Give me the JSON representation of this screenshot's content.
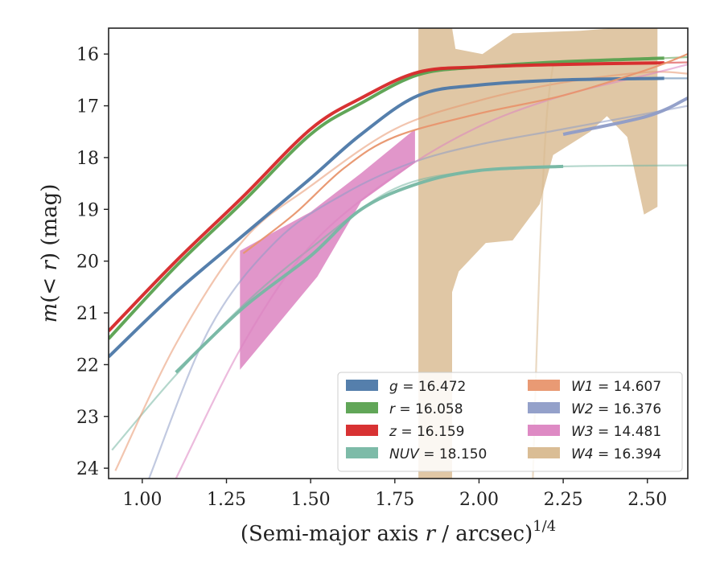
{
  "chart_data": {
    "type": "line",
    "xlabel": "(Semi-major axis r / arcsec)¹ᐟ⁴",
    "xlabel_parts": {
      "pre": "(Semi-major axis ",
      "var": "r",
      "post": " / arcsec)",
      "sup": "1/4"
    },
    "ylabel_parts": {
      "var": "m",
      "mid": "(< ",
      "var2": "r",
      "post": ") (mag)"
    },
    "xlim": [
      0.9,
      2.62
    ],
    "ylim": [
      24.2,
      15.5
    ],
    "y_inverted": true,
    "x_ticks": [
      1.0,
      1.25,
      1.5,
      1.75,
      2.0,
      2.25,
      2.5
    ],
    "x_tick_labels": [
      "1.00",
      "1.25",
      "1.50",
      "1.75",
      "2.00",
      "2.25",
      "2.50"
    ],
    "y_ticks": [
      16,
      17,
      18,
      19,
      20,
      21,
      22,
      23,
      24
    ],
    "y_tick_labels": [
      "16",
      "17",
      "18",
      "19",
      "20",
      "21",
      "22",
      "23",
      "24"
    ],
    "legend_position": "lower right",
    "series": [
      {
        "name": "g = 16.472",
        "label_var": "g",
        "label_val": "= 16.472",
        "color": "#4c78a8",
        "bold": [
          [
            0.9,
            21.85
          ],
          [
            1.1,
            20.6
          ],
          [
            1.3,
            19.5
          ],
          [
            1.5,
            18.4
          ],
          [
            1.65,
            17.55
          ],
          [
            1.82,
            16.8
          ],
          [
            2.0,
            16.6
          ],
          [
            2.25,
            16.5
          ],
          [
            2.55,
            16.47
          ]
        ],
        "faint": [
          [
            2.55,
            16.47
          ],
          [
            2.62,
            16.47
          ]
        ]
      },
      {
        "name": "r = 16.058",
        "label_var": "r",
        "label_val": "= 16.058",
        "color": "#59a14f",
        "bold": [
          [
            0.9,
            21.5
          ],
          [
            1.1,
            20.1
          ],
          [
            1.3,
            18.85
          ],
          [
            1.5,
            17.55
          ],
          [
            1.65,
            16.95
          ],
          [
            1.82,
            16.4
          ],
          [
            2.0,
            16.25
          ],
          [
            2.25,
            16.15
          ],
          [
            2.55,
            16.08
          ]
        ],
        "faint": [
          [
            2.55,
            16.08
          ],
          [
            2.62,
            16.06
          ]
        ]
      },
      {
        "name": "z = 16.159",
        "label_var": "z",
        "label_val": "= 16.159",
        "color": "#d62728",
        "bold": [
          [
            0.9,
            21.35
          ],
          [
            1.1,
            20.0
          ],
          [
            1.3,
            18.75
          ],
          [
            1.5,
            17.45
          ],
          [
            1.65,
            16.85
          ],
          [
            1.82,
            16.35
          ],
          [
            2.0,
            16.25
          ],
          [
            2.25,
            16.2
          ],
          [
            2.55,
            16.17
          ]
        ],
        "faint": [
          [
            2.55,
            16.17
          ],
          [
            2.62,
            16.16
          ]
        ]
      },
      {
        "name": "NUV = 18.150",
        "label_var": "NUV",
        "label_val": "= 18.150",
        "color": "#76b7a3",
        "bold": [
          [
            1.1,
            22.15
          ],
          [
            1.3,
            20.9
          ],
          [
            1.5,
            19.9
          ],
          [
            1.65,
            19.0
          ],
          [
            1.82,
            18.5
          ],
          [
            2.0,
            18.25
          ],
          [
            2.25,
            18.17
          ]
        ],
        "faint": [
          [
            0.91,
            23.65
          ],
          [
            1.1,
            22.2
          ],
          [
            1.3,
            20.85
          ],
          [
            1.5,
            19.75
          ],
          [
            1.75,
            18.6
          ],
          [
            2.0,
            18.25
          ],
          [
            2.25,
            18.17
          ],
          [
            2.62,
            18.15
          ]
        ]
      },
      {
        "name": "W1 = 14.607",
        "label_var": "W1",
        "label_val": "= 14.607",
        "color": "#e8956d",
        "bold": [
          [
            1.3,
            19.85
          ],
          [
            1.45,
            19.1
          ],
          [
            1.6,
            18.2
          ],
          [
            1.75,
            17.6
          ],
          [
            2.0,
            17.15
          ],
          [
            2.25,
            16.8
          ],
          [
            2.5,
            16.3
          ],
          [
            2.62,
            16.0
          ]
        ],
        "faint": [
          [
            0.92,
            24.05
          ],
          [
            1.1,
            21.6
          ],
          [
            1.3,
            19.6
          ],
          [
            1.5,
            18.55
          ],
          [
            1.75,
            17.45
          ],
          [
            2.0,
            16.9
          ],
          [
            2.25,
            16.55
          ],
          [
            2.5,
            16.35
          ],
          [
            2.62,
            16.38
          ]
        ]
      },
      {
        "name": "W2 = 16.376",
        "label_var": "W2",
        "label_val": "= 16.376",
        "color": "#8e9cc7",
        "bold": [
          [
            2.25,
            17.55
          ],
          [
            2.5,
            17.2
          ],
          [
            2.62,
            16.85
          ]
        ],
        "faint": [
          [
            1.02,
            24.2
          ],
          [
            1.2,
            21.3
          ],
          [
            1.4,
            19.6
          ],
          [
            1.6,
            18.7
          ],
          [
            1.8,
            18.1
          ],
          [
            2.0,
            17.75
          ],
          [
            2.25,
            17.45
          ],
          [
            2.5,
            17.15
          ],
          [
            2.62,
            17.0
          ]
        ]
      },
      {
        "name": "W3 = 14.481",
        "label_var": "W3",
        "label_val": "= 14.481",
        "color": "#dc84c1",
        "band": [
          [
            1.29,
            19.8
          ],
          [
            1.5,
            19.05
          ],
          [
            1.65,
            18.3
          ],
          [
            1.81,
            17.45
          ],
          [
            1.81,
            18.1
          ],
          [
            1.65,
            18.85
          ],
          [
            1.52,
            20.3
          ],
          [
            1.29,
            22.1
          ]
        ],
        "faint": [
          [
            1.1,
            24.2
          ],
          [
            1.3,
            21.6
          ],
          [
            1.5,
            19.7
          ],
          [
            1.75,
            18.35
          ],
          [
            2.0,
            17.4
          ],
          [
            2.25,
            16.8
          ],
          [
            2.5,
            16.4
          ],
          [
            2.62,
            16.2
          ]
        ]
      },
      {
        "name": "W4 = 16.394",
        "label_var": "W4",
        "label_val": "= 16.394",
        "color": "#d8b98f",
        "band": [
          [
            1.82,
            15.5
          ],
          [
            1.92,
            15.5
          ],
          [
            1.93,
            15.9
          ],
          [
            2.01,
            16.0
          ],
          [
            2.1,
            15.6
          ],
          [
            2.3,
            15.55
          ],
          [
            2.4,
            15.5
          ],
          [
            2.53,
            15.5
          ],
          [
            2.53,
            18.95
          ],
          [
            2.49,
            19.1
          ],
          [
            2.44,
            17.6
          ],
          [
            2.38,
            17.2
          ],
          [
            2.33,
            17.5
          ],
          [
            2.22,
            17.95
          ],
          [
            2.18,
            18.9
          ],
          [
            2.1,
            19.6
          ],
          [
            2.02,
            19.65
          ],
          [
            1.94,
            20.2
          ],
          [
            1.92,
            20.6
          ],
          [
            1.92,
            24.2
          ],
          [
            1.82,
            24.2
          ]
        ],
        "faint": [
          [
            2.16,
            24.2
          ],
          [
            2.18,
            20.0
          ],
          [
            2.2,
            17.3
          ],
          [
            2.22,
            16.2
          ]
        ]
      }
    ]
  }
}
